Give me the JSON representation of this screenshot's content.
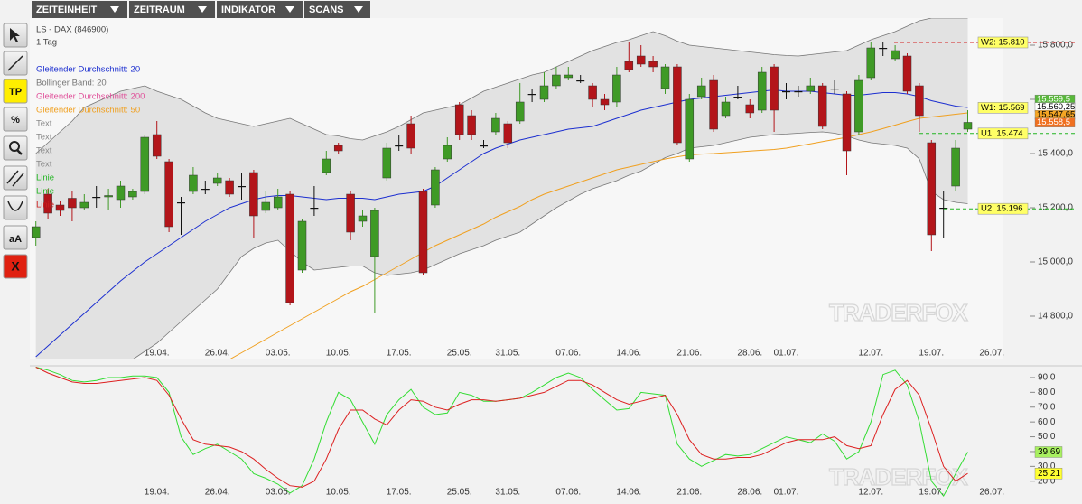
{
  "menu": [
    "ZEITEINHEIT",
    "ZEITRAUM",
    "INDIKATOR",
    "SCANS"
  ],
  "tools": [
    "TP",
    "%",
    "aA",
    "X"
  ],
  "chart_data": [
    {
      "type": "candlestick",
      "title": "LS - DAX (846900)",
      "subtitle": "1 Tag",
      "categories": [
        null,
        null,
        null,
        null,
        null,
        null,
        null,
        null,
        null,
        null,
        "19.04.",
        null,
        null,
        null,
        null,
        "26.04.",
        null,
        null,
        null,
        null,
        "03.05.",
        null,
        null,
        null,
        null,
        "10.05.",
        null,
        null,
        null,
        null,
        "17.05.",
        null,
        null,
        null,
        null,
        "25.05.",
        null,
        null,
        null,
        "31.05.",
        null,
        null,
        null,
        null,
        "07.06.",
        null,
        null,
        null,
        null,
        "14.06.",
        null,
        null,
        null,
        null,
        "21.06.",
        null,
        null,
        null,
        null,
        "28.06.",
        null,
        null,
        "01.07.",
        null,
        null,
        null,
        null,
        null,
        null,
        "12.07.",
        null,
        null,
        null,
        null,
        "19.07.",
        null,
        null,
        null,
        null,
        "26.07."
      ],
      "open": [
        15090,
        15250,
        15210,
        15235,
        15200,
        15240,
        15240,
        15230,
        15240,
        15260,
        15470,
        15370,
        15220,
        15260,
        15270,
        15290,
        15300,
        15280,
        15330,
        15190,
        15200,
        15250,
        14970,
        15200,
        15330,
        15430,
        15250,
        15150,
        15020,
        15310,
        15430,
        15510,
        15260,
        15210,
        15380,
        15580,
        15540,
        15430,
        15480,
        15510,
        15520,
        15620,
        15600,
        15650,
        15680,
        15670,
        15650,
        15600,
        15590,
        15740,
        15760,
        15740,
        15640,
        15720,
        15380,
        15610,
        15670,
        15540,
        15610,
        15580,
        15560,
        15720,
        15630,
        15630,
        15630,
        15650,
        15640,
        15620,
        15480,
        15680,
        15790,
        15750,
        15760,
        15650,
        15440,
        15200,
        15280,
        15490,
        null,
        null
      ],
      "high": [
        15150,
        15270,
        15225,
        15260,
        15250,
        15280,
        15270,
        15300,
        15270,
        15470,
        15520,
        15380,
        15240,
        15350,
        15300,
        15330,
        15310,
        15330,
        15340,
        15260,
        15270,
        15260,
        15160,
        15280,
        15410,
        15440,
        15260,
        15190,
        15200,
        15440,
        15470,
        15540,
        15270,
        15350,
        15460,
        15590,
        15560,
        15450,
        15550,
        15520,
        15660,
        15640,
        15700,
        15720,
        15720,
        15690,
        15660,
        15620,
        15720,
        15810,
        15800,
        15760,
        15730,
        15730,
        15620,
        15680,
        15690,
        15610,
        15650,
        15600,
        15720,
        15730,
        15660,
        15650,
        15680,
        15660,
        15670,
        15630,
        15690,
        15810,
        15810,
        15800,
        15770,
        15660,
        15450,
        15260,
        15450,
        15560,
        null,
        null
      ],
      "low": [
        15060,
        15160,
        15170,
        15150,
        15190,
        15200,
        15190,
        15200,
        15230,
        15250,
        15380,
        15110,
        15100,
        15250,
        15250,
        15280,
        15240,
        15230,
        15090,
        15180,
        15190,
        14840,
        14960,
        15170,
        15320,
        15400,
        15080,
        15130,
        14810,
        15300,
        15410,
        15400,
        14950,
        15200,
        15370,
        15450,
        15450,
        15420,
        15470,
        15420,
        15510,
        15590,
        15590,
        15640,
        15670,
        15660,
        15570,
        15560,
        15570,
        15700,
        15720,
        15700,
        15620,
        15430,
        15370,
        15600,
        15480,
        15530,
        15600,
        15530,
        15550,
        15480,
        15600,
        15610,
        15620,
        15490,
        15620,
        15320,
        15470,
        15670,
        15760,
        15740,
        15620,
        15480,
        15040,
        15090,
        15260,
        15480,
        null,
        null
      ],
      "close": [
        15130,
        15180,
        15190,
        15200,
        15220,
        15240,
        15245,
        15280,
        15260,
        15460,
        15390,
        15130,
        15220,
        15320,
        15270,
        15310,
        15250,
        15280,
        15170,
        15220,
        15240,
        14850,
        15150,
        15200,
        15380,
        15410,
        15110,
        15170,
        15190,
        15420,
        15430,
        15420,
        14960,
        15340,
        15430,
        15470,
        15470,
        15430,
        15530,
        15440,
        15590,
        15620,
        15650,
        15690,
        15690,
        15670,
        15600,
        15580,
        15690,
        15710,
        15730,
        15720,
        15720,
        15440,
        15600,
        15650,
        15490,
        15590,
        15610,
        15550,
        15700,
        15560,
        15630,
        15630,
        15650,
        15500,
        15640,
        15410,
        15670,
        15790,
        15790,
        15780,
        15630,
        15540,
        15100,
        15200,
        15420,
        15515,
        null,
        null
      ],
      "up_color": "#3f9a26",
      "down_color": "#b3151a",
      "ylim": [
        14640,
        15900
      ],
      "yticks": [
        {
          "value": 14800,
          "label": "14.800,0"
        },
        {
          "value": 15000,
          "label": "15.000,0"
        },
        {
          "value": 15200,
          "label": "15.200,0"
        },
        {
          "value": 15400,
          "label": "15.400,0"
        },
        {
          "value": 15600,
          "label": "15.600,0"
        },
        {
          "value": 15800,
          "label": "15.800,0"
        }
      ],
      "legend": [
        {
          "name": "Gleitender Durchschnitt: 20",
          "color": "#1c2fd0",
          "values": [
            14650,
            14690,
            14730,
            14770,
            14810,
            14850,
            14890,
            14930,
            14965,
            15000,
            15030,
            15060,
            15090,
            15120,
            15150,
            15175,
            15200,
            15215,
            15230,
            15240,
            15245,
            15245,
            15240,
            15235,
            15230,
            15235,
            15235,
            15235,
            15230,
            15240,
            15250,
            15255,
            15260,
            15280,
            15310,
            15340,
            15370,
            15400,
            15420,
            15435,
            15450,
            15460,
            15470,
            15480,
            15490,
            15495,
            15500,
            15515,
            15530,
            15545,
            15560,
            15570,
            15580,
            15590,
            15600,
            15605,
            15610,
            15615,
            15620,
            15625,
            15630,
            15635,
            15630,
            15630,
            15630,
            15625,
            15620,
            15615,
            15615,
            15620,
            15625,
            15625,
            15620,
            15610,
            15595,
            15585,
            15575,
            15570,
            null,
            null
          ]
        },
        {
          "name": "Bollinger Band: 20",
          "color": "#777777",
          "upper": [
            15400,
            15440,
            15480,
            15520,
            15570,
            15590,
            15610,
            15630,
            15640,
            15650,
            15630,
            15615,
            15600,
            15575,
            15550,
            15530,
            15520,
            15510,
            15500,
            15510,
            15520,
            15530,
            15510,
            15490,
            15470,
            15465,
            15455,
            15450,
            15465,
            15480,
            15500,
            15525,
            15550,
            15560,
            15570,
            15580,
            15605,
            15630,
            15645,
            15660,
            15675,
            15690,
            15700,
            15720,
            15740,
            15760,
            15780,
            15795,
            15810,
            15820,
            15835,
            15850,
            15835,
            15815,
            15800,
            15795,
            15790,
            15785,
            15780,
            15775,
            15770,
            15765,
            15762,
            15760,
            15765,
            15770,
            15775,
            15780,
            15800,
            15820,
            15835,
            15850,
            15870,
            15890,
            15900,
            15900,
            15900,
            15900,
            null,
            null
          ],
          "lower": [
            14400,
            14430,
            14460,
            14490,
            14520,
            14550,
            14580,
            14610,
            14640,
            14670,
            14700,
            14740,
            14780,
            14820,
            14860,
            14900,
            14960,
            15020,
            15050,
            15070,
            15080,
            15040,
            15000,
            14970,
            14975,
            14980,
            14985,
            14985,
            14960,
            14950,
            14955,
            14960,
            14970,
            14990,
            15010,
            15030,
            15045,
            15060,
            15080,
            15095,
            15110,
            15140,
            15170,
            15200,
            15225,
            15250,
            15270,
            15285,
            15300,
            15320,
            15335,
            15360,
            15385,
            15400,
            15420,
            15425,
            15430,
            15440,
            15450,
            15460,
            15465,
            15470,
            15472,
            15475,
            15478,
            15480,
            15475,
            15465,
            15450,
            15440,
            15435,
            15430,
            15420,
            15380,
            15260,
            15230,
            15220,
            15215,
            null,
            null
          ]
        },
        {
          "name": "Gleitender Durchschnitt: 200",
          "color": "#e0509a"
        },
        {
          "name": "Gleitender Durchschnitt: 50",
          "color": "#f0a020",
          "values": [
            null,
            null,
            null,
            null,
            null,
            null,
            null,
            null,
            null,
            null,
            null,
            null,
            null,
            null,
            null,
            null,
            14640,
            14665,
            14690,
            14715,
            14740,
            14765,
            14790,
            14815,
            14840,
            14865,
            14890,
            14910,
            14935,
            14960,
            14985,
            15010,
            15035,
            15060,
            15080,
            15100,
            15120,
            15140,
            15165,
            15185,
            15205,
            15230,
            15250,
            15265,
            15280,
            15295,
            15310,
            15325,
            15340,
            15350,
            15360,
            15370,
            15380,
            15388,
            15395,
            15398,
            15400,
            15403,
            15406,
            15409,
            15412,
            15415,
            15420,
            15428,
            15436,
            15444,
            15452,
            15460,
            15470,
            15480,
            15492,
            15505,
            15518,
            15530,
            15535,
            15540,
            15545,
            15550,
            null,
            null
          ]
        },
        {
          "name": "Text",
          "color": "#8a8a8a"
        },
        {
          "name": "Text",
          "color": "#8a8a8a"
        },
        {
          "name": "Text",
          "color": "#8a8a8a"
        },
        {
          "name": "Text",
          "color": "#8a8a8a"
        },
        {
          "name": "Linie",
          "color": "#22b522"
        },
        {
          "name": "Linie",
          "color": "#22b522"
        },
        {
          "name": "Linie",
          "color": "#cc2020"
        }
      ],
      "levels": [
        {
          "label": "W2: 15.810",
          "value": 15810,
          "color": "#d42020",
          "dashed": true
        },
        {
          "label": "W1: 15.569",
          "value": 15569,
          "color": "#d42020",
          "dashed": false
        },
        {
          "label": "U1: 15.474",
          "value": 15474,
          "color": "#22b522",
          "dashed": true
        },
        {
          "label": "U2: 15.196",
          "value": 15196,
          "color": "#22b522",
          "dashed": true
        }
      ],
      "price_markers": [
        {
          "value": 15559.5,
          "label": "15.559,5",
          "color": "#58b83a",
          "text_color": "#ffffff"
        },
        {
          "value": 15560.25,
          "label": "15.560,25",
          "color": "#ffffff",
          "text_color": "#000000"
        },
        {
          "value": 15547.65,
          "label": "15.547,65",
          "color": "#f5a623",
          "text_color": "#000000"
        },
        {
          "value": 15558.5,
          "label": "15.558,5",
          "color": "#f07020",
          "text_color": "#ffffff"
        }
      ],
      "watermark": "TRADERFOX"
    },
    {
      "type": "line",
      "series": [
        {
          "color": "#33dd33",
          "values": [
            97,
            95,
            92,
            88,
            87,
            88,
            90,
            90,
            91,
            91,
            90,
            80,
            50,
            38,
            42,
            45,
            40,
            35,
            25,
            22,
            18,
            12,
            17,
            35,
            60,
            80,
            75,
            60,
            45,
            65,
            75,
            82,
            70,
            65,
            66,
            80,
            78,
            74,
            74,
            75,
            76,
            80,
            85,
            90,
            93,
            90,
            82,
            75,
            68,
            69,
            80,
            79,
            78,
            45,
            35,
            30,
            34,
            38,
            37,
            38,
            42,
            46,
            50,
            48,
            46,
            52,
            47,
            35,
            40,
            60,
            92,
            95,
            85,
            60,
            20,
            10,
            25,
            39.69,
            null,
            null
          ]
        },
        {
          "color": "#dd2020",
          "values": [
            97,
            93,
            90,
            87,
            86,
            86,
            87,
            88,
            89,
            90,
            88,
            78,
            62,
            48,
            45,
            44,
            43,
            40,
            35,
            28,
            22,
            17,
            16,
            20,
            35,
            55,
            68,
            68,
            62,
            58,
            68,
            75,
            74,
            70,
            68,
            72,
            75,
            75,
            74,
            75,
            76,
            78,
            80,
            84,
            88,
            88,
            85,
            80,
            75,
            72,
            74,
            76,
            78,
            65,
            48,
            38,
            35,
            35,
            36,
            36,
            38,
            42,
            46,
            48,
            48,
            48,
            50,
            44,
            42,
            44,
            65,
            82,
            88,
            78,
            55,
            30,
            20,
            25.21,
            null,
            null
          ]
        }
      ],
      "ylim": [
        10.7,
        97.9
      ],
      "yticks": [
        {
          "value": 20,
          "label": "20,0"
        },
        {
          "value": 30,
          "label": "30,0"
        },
        {
          "value": 40,
          "label": "40,0"
        },
        {
          "value": 50,
          "label": "50,0"
        },
        {
          "value": 60,
          "label": "60,0"
        },
        {
          "value": 70,
          "label": "70,0"
        },
        {
          "value": 80,
          "label": "80,0"
        },
        {
          "value": 90,
          "label": "90,0"
        }
      ],
      "markers": [
        {
          "value": 39.69,
          "label": "39,69",
          "color": "#a8f060"
        },
        {
          "value": 25.21,
          "label": "25,21",
          "color": "#ffff33"
        }
      ]
    }
  ]
}
